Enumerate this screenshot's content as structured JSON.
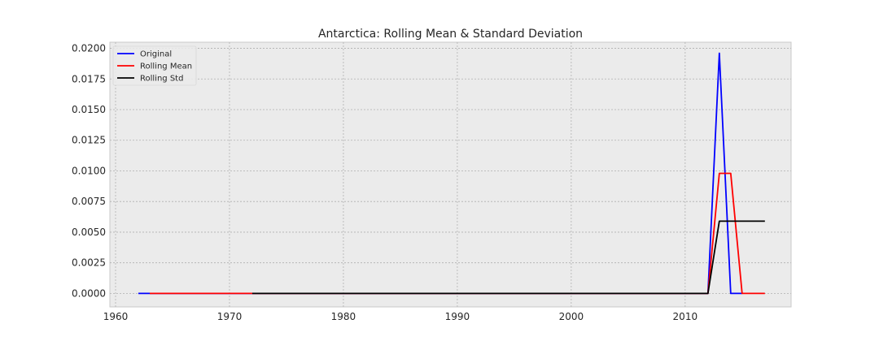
{
  "chart_data": {
    "type": "line",
    "title": "Antarctica: Rolling Mean & Standard Deviation",
    "xlabel": "",
    "ylabel": "",
    "xlim": [
      1959.5,
      2019.3
    ],
    "ylim": [
      -0.0011,
      0.0205
    ],
    "xticks": [
      1960,
      1970,
      1980,
      1990,
      2000,
      2010
    ],
    "yticks": [
      "0.0000",
      "0.0025",
      "0.0050",
      "0.0075",
      "0.0100",
      "0.0125",
      "0.0150",
      "0.0175",
      "0.0200"
    ],
    "grid": true,
    "legend_position": "top-left",
    "series": [
      {
        "name": "Original",
        "color": "#0000ff",
        "x": [
          1962,
          1963,
          1964,
          1965,
          1966,
          1967,
          1968,
          1969,
          1970,
          1971,
          1972,
          1973,
          1974,
          1975,
          1976,
          1977,
          1978,
          1979,
          1980,
          1981,
          1982,
          1983,
          1984,
          1985,
          1986,
          1987,
          1988,
          1989,
          1990,
          1991,
          1992,
          1993,
          1994,
          1995,
          1996,
          1997,
          1998,
          1999,
          2000,
          2001,
          2002,
          2003,
          2004,
          2005,
          2006,
          2007,
          2008,
          2009,
          2010,
          2011,
          2012,
          2013,
          2014,
          2015
        ],
        "y": [
          0,
          0,
          0,
          0,
          0,
          0,
          0,
          0,
          0,
          0,
          0,
          0,
          0,
          0,
          0,
          0,
          0,
          0,
          0,
          0,
          0,
          0,
          0,
          0,
          0,
          0,
          0,
          0,
          0,
          0,
          0,
          0,
          0,
          0,
          0,
          0,
          0,
          0,
          0,
          0,
          0,
          0,
          0,
          0,
          0,
          0,
          0,
          0,
          0,
          0,
          0,
          0.0196,
          0,
          0
        ]
      },
      {
        "name": "Rolling Mean",
        "color": "#ff0000",
        "x": [
          1963,
          1964,
          1965,
          1966,
          1967,
          1968,
          1969,
          1970,
          1971,
          1972,
          1973,
          1974,
          1975,
          1976,
          1977,
          1978,
          1979,
          1980,
          1981,
          1982,
          1983,
          1984,
          1985,
          1986,
          1987,
          1988,
          1989,
          1990,
          1991,
          1992,
          1993,
          1994,
          1995,
          1996,
          1997,
          1998,
          1999,
          2000,
          2001,
          2002,
          2003,
          2004,
          2005,
          2006,
          2007,
          2008,
          2009,
          2010,
          2011,
          2012,
          2013,
          2014,
          2015,
          2016,
          2017
        ],
        "y": [
          0,
          0,
          0,
          0,
          0,
          0,
          0,
          0,
          0,
          0,
          0,
          0,
          0,
          0,
          0,
          0,
          0,
          0,
          0,
          0,
          0,
          0,
          0,
          0,
          0,
          0,
          0,
          0,
          0,
          0,
          0,
          0,
          0,
          0,
          0,
          0,
          0,
          0,
          0,
          0,
          0,
          0,
          0,
          0,
          0,
          0,
          0,
          0,
          0,
          0,
          0.0098,
          0.0098,
          0,
          0,
          0
        ]
      },
      {
        "name": "Rolling Std",
        "color": "#000000",
        "x": [
          1972,
          1973,
          1974,
          1975,
          1976,
          1977,
          1978,
          1979,
          1980,
          1981,
          1982,
          1983,
          1984,
          1985,
          1986,
          1987,
          1988,
          1989,
          1990,
          1991,
          1992,
          1993,
          1994,
          1995,
          1996,
          1997,
          1998,
          1999,
          2000,
          2001,
          2002,
          2003,
          2004,
          2005,
          2006,
          2007,
          2008,
          2009,
          2010,
          2011,
          2012,
          2013,
          2014,
          2015,
          2016,
          2017
        ],
        "y": [
          0,
          0,
          0,
          0,
          0,
          0,
          0,
          0,
          0,
          0,
          0,
          0,
          0,
          0,
          0,
          0,
          0,
          0,
          0,
          0,
          0,
          0,
          0,
          0,
          0,
          0,
          0,
          0,
          0,
          0,
          0,
          0,
          0,
          0,
          0,
          0,
          0,
          0,
          0,
          0,
          0,
          0.0059,
          0.0059,
          0.0059,
          0.0059,
          0.0059
        ]
      }
    ]
  }
}
